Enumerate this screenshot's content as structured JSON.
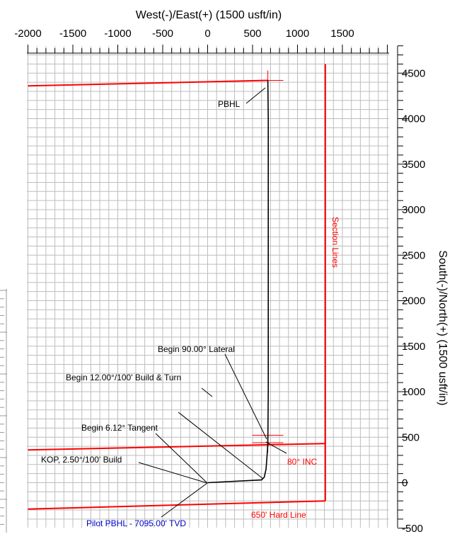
{
  "chart_data": {
    "type": "line",
    "title": "",
    "xlabel": "West(-)/East(+) (1500 usft/in)",
    "ylabel": "South(-)/North(+) (1500 usft/in)",
    "xlim": [
      -2000,
      2000
    ],
    "ylim": [
      -500,
      4700
    ],
    "x_ticks": [
      -2000,
      -1500,
      -1000,
      -500,
      0,
      500,
      1000,
      1500
    ],
    "y_ticks": [
      4500,
      4000,
      3500,
      3000,
      2500,
      2000,
      1500,
      1000,
      500,
      0,
      -500
    ],
    "x_tick_labels": [
      "-2000",
      "-1500",
      "-1000",
      "-500",
      "0",
      "500",
      "1000",
      "1500"
    ],
    "y_tick_labels": [
      "4500",
      "4000",
      "3500",
      "3000",
      "2500",
      "2000",
      "1500",
      "1000",
      "500",
      "0",
      "-500"
    ],
    "grid": true,
    "well_path": {
      "color": "#000000",
      "points": [
        [
          0,
          0
        ],
        [
          600,
          30
        ],
        [
          630,
          60
        ],
        [
          650,
          150
        ],
        [
          665,
          350
        ],
        [
          670,
          430
        ],
        [
          675,
          1000
        ],
        [
          675,
          2000
        ],
        [
          675,
          3000
        ],
        [
          675,
          4000
        ],
        [
          670,
          4420
        ]
      ]
    },
    "section_lines": {
      "color": "#ff0000",
      "lines": [
        [
          [
            -2000,
            4360
          ],
          [
            670,
            4420
          ]
        ],
        [
          [
            -2000,
            360
          ],
          [
            1310,
            430
          ]
        ],
        [
          [
            -2000,
            -290
          ],
          [
            1310,
            -200
          ]
        ],
        [
          [
            1310,
            -200
          ],
          [
            1310,
            4600
          ]
        ]
      ]
    },
    "crosshairs": [
      {
        "x": 670,
        "y": 4420
      },
      {
        "x": 670,
        "y": 520
      },
      {
        "x": 670,
        "y": 440
      }
    ],
    "annotations": [
      {
        "id": "pbhl",
        "text": "PBHL",
        "color": "#000000"
      },
      {
        "id": "lateral",
        "text": "Begin 90.00° Lateral",
        "color": "#000000"
      },
      {
        "id": "build_turn",
        "text": "Begin 12.00°/100' Build & Turn",
        "color": "#000000"
      },
      {
        "id": "tangent",
        "text": "Begin 6.12° Tangent",
        "color": "#000000"
      },
      {
        "id": "kop",
        "text": "KOP, 2.50°/100' Build",
        "color": "#000000"
      },
      {
        "id": "pilot",
        "text": "Pilot PBHL - 7095.00' TVD",
        "color": "#0000cc"
      },
      {
        "id": "inc80",
        "text": "80° INC",
        "color": "#ff0000"
      },
      {
        "id": "hardline",
        "text": "650' Hard Line",
        "color": "#ff0000"
      },
      {
        "id": "section",
        "text": "Section Lines",
        "color": "#ff0000"
      }
    ]
  }
}
